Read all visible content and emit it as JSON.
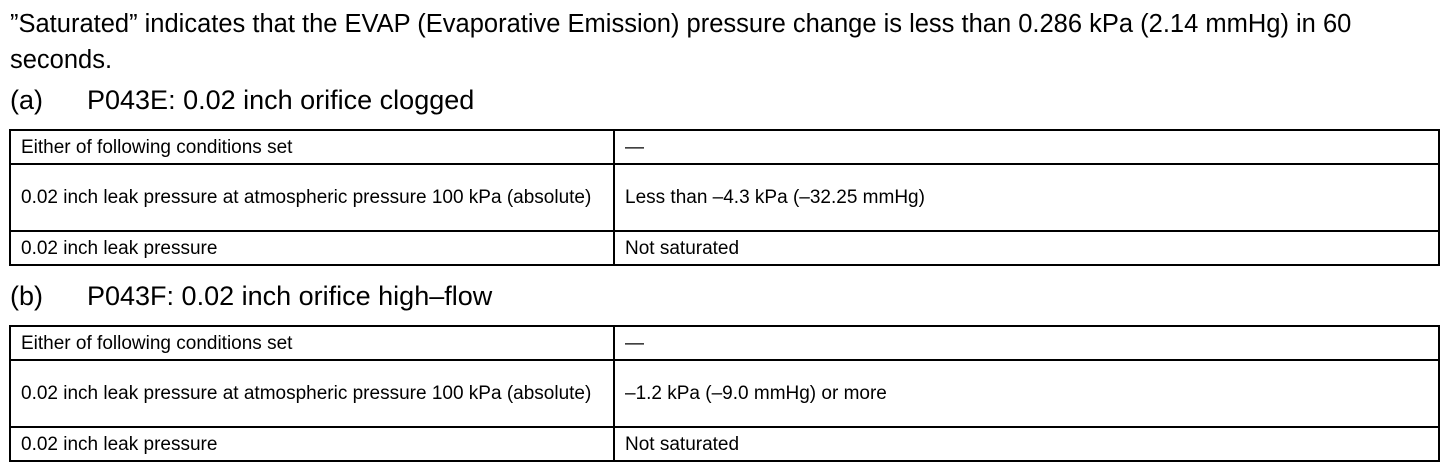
{
  "intro": "”Saturated” indicates that the EVAP (Evaporative Emission) pressure change is less than 0.286 kPa (2.14 mmHg) in 60 seconds.",
  "sections": [
    {
      "letter": "(a)",
      "title": "P043E: 0.02 inch orifice clogged",
      "rows": [
        {
          "condition": "Either of following conditions set",
          "value": "—"
        },
        {
          "condition": "0.02 inch leak pressure at atmospheric pressure 100 kPa (absolute)",
          "value": "Less than –4.3 kPa (–32.25 mmHg)"
        },
        {
          "condition": "0.02 inch leak pressure",
          "value": "Not saturated"
        }
      ]
    },
    {
      "letter": "(b)",
      "title": "P043F: 0.02 inch orifice high–flow",
      "rows": [
        {
          "condition": "Either of following conditions set",
          "value": "—"
        },
        {
          "condition": "0.02 inch leak pressure at atmospheric pressure 100 kPa (absolute)",
          "value": "–1.2 kPa (–9.0 mmHg) or more"
        },
        {
          "condition": "0.02 inch leak pressure",
          "value": "Not saturated"
        }
      ]
    }
  ]
}
